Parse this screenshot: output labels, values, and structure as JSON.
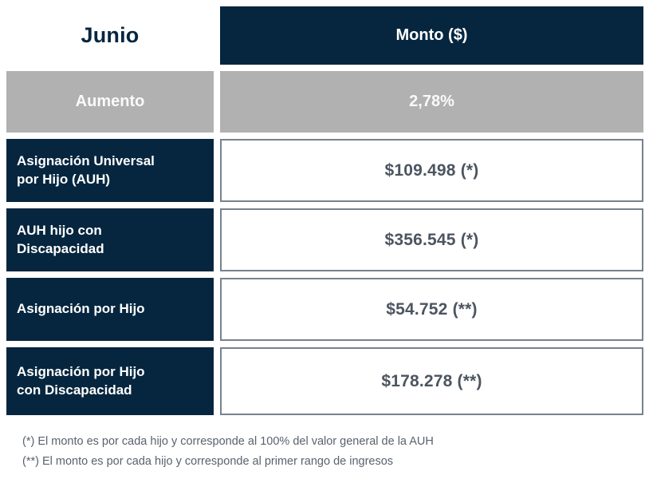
{
  "table": {
    "header": {
      "month": "Junio",
      "amount_label": "Monto ($)"
    },
    "increase_row": {
      "label": "Aumento",
      "value": "2,78%"
    },
    "rows": [
      {
        "label": "Asignación Universal\npor Hijo (AUH)",
        "value": "$109.498 (*)"
      },
      {
        "label": "AUH hijo con\nDiscapacidad",
        "value": "$356.545 (*)"
      },
      {
        "label": "Asignación por Hijo",
        "value": "$54.752 (**)"
      },
      {
        "label": "Asignación por Hijo\ncon Discapacidad",
        "value": "$178.278 (**)"
      }
    ]
  },
  "footnotes": [
    "(*) El monto es por cada hijo y corresponde al 100% del valor general de la AUH",
    "(**) El monto es por cada hijo y corresponde al primer rango de ingresos"
  ],
  "colors": {
    "navy": "#06263f",
    "gray": "#b1b1b1",
    "value_text": "#4c5560",
    "cell_border": "#76828f",
    "note_text": "#5a626e"
  },
  "chart_data": {
    "type": "table",
    "title": "Junio",
    "columns": [
      "Junio",
      "Monto ($)"
    ],
    "rows": [
      [
        "Aumento",
        "2,78%"
      ],
      [
        "Asignación Universal por Hijo (AUH)",
        "$109.498 (*)"
      ],
      [
        "AUH hijo con Discapacidad",
        "$356.545 (*)"
      ],
      [
        "Asignación por Hijo",
        "$54.752 (**)"
      ],
      [
        "Asignación por Hijo con Discapacidad",
        "$178.278 (**)"
      ]
    ],
    "numeric_values": {
      "increase_percent": 2.78,
      "auh_amount": 109498,
      "auh_disability_amount": 356545,
      "asignacion_por_hijo_amount": 54752,
      "asignacion_por_hijo_disability_amount": 178278
    },
    "footnotes": [
      "(*) El monto es por cada hijo y corresponde al 100% del valor general de la AUH",
      "(**) El monto es por cada hijo y corresponde al primer rango de ingresos"
    ]
  }
}
